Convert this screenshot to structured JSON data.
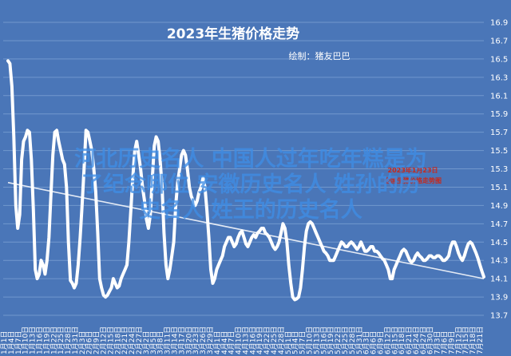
{
  "chart_data": {
    "type": "line",
    "title": "2023年生猪价格走势",
    "credit": "绘制：猪友巴巴",
    "annotation": [
      "2023年1月23日",
      "全国生猪价格走势图"
    ],
    "overlay_text": [
      "河北历史名人 中国人过年吃年糕是为",
      "了纪念哪位 安徽历史名人 姓孙的历",
      "史名人 姓王的历史名人"
    ],
    "ylim": [
      13.7,
      16.9
    ],
    "y_ticks": [
      "13.7",
      "13.9",
      "14.1",
      "14.3",
      "14.5",
      "14.7",
      "14.9",
      "15.1",
      "15.3",
      "15.5",
      "15.7",
      "15.9",
      "16.1",
      "16.3",
      "16.5",
      "16.7",
      "16.9"
    ],
    "x_ticks": [
      "1月1日",
      "1月4日",
      "1月7日",
      "1月10日",
      "1月13日",
      "1月16日",
      "1月19日",
      "1月22日",
      "1月25日",
      "1月28日",
      "1月31日",
      "2月3日",
      "2月6日",
      "2月9日",
      "2月12日",
      "2月15日",
      "2月18日",
      "2月21日",
      "2月24日",
      "2月27日",
      "3月2日",
      "3月5日",
      "3月8日",
      "3月11日",
      "3月14日",
      "3月17日",
      "3月20日",
      "3月23日",
      "3月26日",
      "3月29日",
      "4月1日",
      "4月4日",
      "4月7日",
      "4月10日",
      "4月13日",
      "4月16日",
      "4月19日",
      "4月22日",
      "4月25日",
      "4月28日",
      "5月1日",
      "5月4日",
      "5月7日",
      "5月10日",
      "5月13日",
      "5月16日",
      "5月19日",
      "5月22日",
      "5月25日",
      "5月28日",
      "5月31日",
      "6月3日",
      "6月6日",
      "6月9日",
      "6月12日",
      "6月15日",
      "6月18日",
      "6月21日",
      "6月24日",
      "6月27日",
      "6月30日",
      "7月3日",
      "7月6日",
      "7月9日",
      "7月12日",
      "7月15日",
      "7月18日",
      "7月21日"
    ],
    "series": [
      {
        "values": [
          16.48,
          16.45,
          16.2,
          15.65,
          14.9,
          14.65,
          14.8,
          15.4,
          15.6,
          15.65,
          15.72,
          15.7,
          15.4,
          14.85,
          14.2,
          14.1,
          14.15,
          14.3,
          14.25,
          14.15,
          14.3,
          14.55,
          15.0,
          15.45,
          15.7,
          15.72,
          15.6,
          15.5,
          15.4,
          15.35,
          15.1,
          14.5,
          14.08,
          14.05,
          14.0,
          14.05,
          14.25,
          14.55,
          14.9,
          15.3,
          15.72,
          15.7,
          15.6,
          15.5,
          15.3,
          15.05,
          14.6,
          14.1,
          14.0,
          13.92,
          13.9,
          13.92,
          13.96,
          14.0,
          14.1,
          14.05,
          14.0,
          14.02,
          14.1,
          14.15,
          14.2,
          14.25,
          14.5,
          14.85,
          15.2,
          15.5,
          15.6,
          15.45,
          15.3,
          15.1,
          14.95,
          14.75,
          14.65,
          14.8,
          15.2,
          15.55,
          15.65,
          15.6,
          15.4,
          15.1,
          14.6,
          14.25,
          14.1,
          14.2,
          14.35,
          14.5,
          14.9,
          15.15,
          15.3,
          15.45,
          15.5,
          15.45,
          15.3,
          15.1,
          15.0,
          14.95,
          14.9,
          14.95,
          15.05,
          15.1,
          15.2,
          15.1,
          14.85,
          14.55,
          14.2,
          14.05,
          14.1,
          14.2,
          14.25,
          14.3,
          14.35,
          14.45,
          14.5,
          14.55,
          14.55,
          14.5,
          14.45,
          14.48,
          14.55,
          14.6,
          14.62,
          14.55,
          14.48,
          14.45,
          14.5,
          14.55,
          14.58,
          14.55,
          14.6,
          14.62,
          14.65,
          14.65,
          14.6,
          14.58,
          14.55,
          14.5,
          14.45,
          14.42,
          14.45,
          14.5,
          14.6,
          14.7,
          14.65,
          14.5,
          14.25,
          14.05,
          13.9,
          13.87,
          13.88,
          13.9,
          14.0,
          14.2,
          14.45,
          14.62,
          14.7,
          14.72,
          14.7,
          14.65,
          14.6,
          14.55,
          14.5,
          14.45,
          14.4,
          14.38,
          14.35,
          14.3,
          14.3,
          14.3,
          14.35,
          14.4,
          14.45,
          14.5,
          14.48,
          14.45,
          14.45,
          14.48,
          14.5,
          14.48,
          14.45,
          14.42,
          14.45,
          14.5,
          14.45,
          14.4,
          14.4,
          14.42,
          14.45,
          14.45,
          14.4,
          14.4,
          14.38,
          14.35,
          14.32,
          14.3,
          14.25,
          14.2,
          14.1,
          14.1,
          14.2,
          14.25,
          14.3,
          14.35,
          14.4,
          14.42,
          14.4,
          14.35,
          14.3,
          14.28,
          14.3,
          14.35,
          14.38,
          14.35,
          14.33,
          14.3,
          14.3,
          14.32,
          14.35,
          14.35,
          14.33,
          14.33,
          14.35,
          14.35,
          14.33,
          14.3,
          14.3,
          14.32,
          14.35,
          14.45,
          14.5,
          14.5,
          14.45,
          14.38,
          14.33,
          14.3,
          14.35,
          14.42,
          14.48,
          14.5,
          14.48,
          14.43,
          14.38,
          14.32,
          14.25,
          14.18,
          14.12
        ]
      },
      {
        "values": [
          15.15,
          14.1
        ]
      }
    ],
    "colors": {
      "background": "#4a76b8",
      "line": "#ffffff",
      "trend": "#ffffff",
      "gridline": "#7298cd",
      "annotation": "#c8281a",
      "overlay": "#3f8ee6"
    }
  }
}
